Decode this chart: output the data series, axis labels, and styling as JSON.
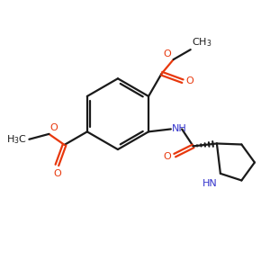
{
  "bg_color": "#ffffff",
  "bond_color": "#1a1a1a",
  "oxygen_color": "#e8380d",
  "nitrogen_color": "#3333cc",
  "text_color": "#1a1a1a",
  "figsize": [
    3.0,
    3.0
  ],
  "dpi": 100,
  "xlim": [
    0,
    10
  ],
  "ylim": [
    0,
    10
  ]
}
